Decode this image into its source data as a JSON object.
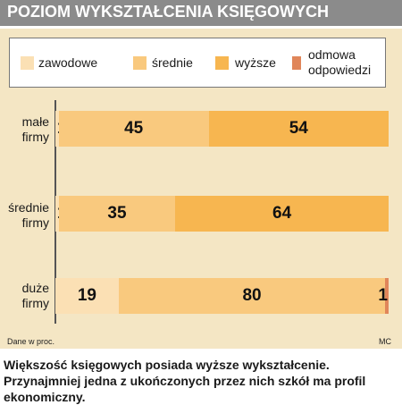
{
  "title": "POZIOM WYKSZTAŁCENIA KSIĘGOWYCH",
  "colors": {
    "zawodowe": "#fbe0b4",
    "srednie": "#f9c97e",
    "wyzsze": "#f7b650",
    "odmowa": "#e0865a",
    "panel": "#f4e6c4",
    "title_bar": "#8b8b8b"
  },
  "chart_data": {
    "type": "bar",
    "orientation": "horizontal",
    "stacked": true,
    "percent": true,
    "categories": [
      "małe\nfirmy",
      "średnie\nfirmy",
      "duże\nfirmy"
    ],
    "series": [
      {
        "name": "zawodowe",
        "values": [
          1,
          1,
          19
        ]
      },
      {
        "name": "średnie",
        "values": [
          45,
          35,
          80
        ]
      },
      {
        "name": "wyższe",
        "values": [
          54,
          64,
          0
        ]
      },
      {
        "name": "odmowa odpowiedzi",
        "values": [
          0,
          0,
          1
        ]
      }
    ],
    "xlim": [
      0,
      100
    ],
    "grid": false,
    "legend": "top"
  },
  "legend": {
    "items": [
      {
        "label": "zawodowe",
        "color_key": "zawodowe"
      },
      {
        "label": "średnie",
        "color_key": "srednie"
      },
      {
        "label": "wyższe",
        "color_key": "wyzsze"
      },
      {
        "label": "odmowa\nodpowiedzi",
        "color_key": "odmowa"
      }
    ]
  },
  "note_left": "Dane w proc.",
  "note_right": "MC",
  "caption": "Większość księgowych posiada wyższe wykształcenie. Przynajmniej jedna z ukończonych przez nich szkół ma profil ekonomiczny."
}
